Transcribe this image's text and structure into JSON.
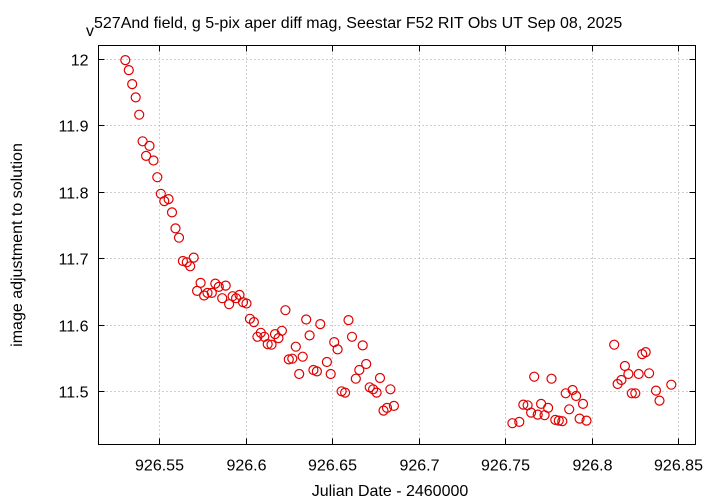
{
  "chart_data": {
    "type": "scatter",
    "title_prefix": "v",
    "title": "527And field, g 5-pix aper diff mag,  Seestar F52 RIT Obs UT Sep 08, 2025",
    "xlabel": "Julian Date - 2460000",
    "ylabel": "image adjustment to solution",
    "xlim": [
      926.515,
      926.86
    ],
    "ylim": [
      11.42,
      12.02
    ],
    "xticks": [
      926.55,
      926.6,
      926.65,
      926.7,
      926.75,
      926.8,
      926.85
    ],
    "xtick_labels": [
      "926.55",
      "926.6",
      "926.65",
      "926.7",
      "926.75",
      "926.8",
      "926.85"
    ],
    "yticks": [
      11.5,
      11.6,
      11.7,
      11.8,
      11.9,
      12.0
    ],
    "ytick_labels": [
      "11.5",
      "11.6",
      "11.7",
      "11.8",
      "11.9",
      "12"
    ],
    "grid": true,
    "marker": "open-circle",
    "color": "#e00000",
    "series": [
      {
        "name": "g 5-pix aper diff mag",
        "points": [
          [
            926.5305,
            11.998
          ],
          [
            926.5325,
            11.983
          ],
          [
            926.5345,
            11.962
          ],
          [
            926.5365,
            11.942
          ],
          [
            926.5385,
            11.916
          ],
          [
            926.5405,
            11.876
          ],
          [
            926.5425,
            11.854
          ],
          [
            926.5445,
            11.869
          ],
          [
            926.5468,
            11.847
          ],
          [
            926.549,
            11.822
          ],
          [
            926.551,
            11.797
          ],
          [
            926.553,
            11.786
          ],
          [
            926.5555,
            11.789
          ],
          [
            926.5575,
            11.769
          ],
          [
            926.5595,
            11.745
          ],
          [
            926.5615,
            11.731
          ],
          [
            926.5638,
            11.696
          ],
          [
            926.566,
            11.694
          ],
          [
            926.568,
            11.688
          ],
          [
            926.57,
            11.701
          ],
          [
            926.572,
            11.651
          ],
          [
            926.574,
            11.663
          ],
          [
            926.576,
            11.644
          ],
          [
            926.578,
            11.648
          ],
          [
            926.5805,
            11.648
          ],
          [
            926.5825,
            11.662
          ],
          [
            926.5845,
            11.657
          ],
          [
            926.5865,
            11.64
          ],
          [
            926.5885,
            11.659
          ],
          [
            926.5905,
            11.631
          ],
          [
            926.5925,
            11.643
          ],
          [
            926.5945,
            11.64
          ],
          [
            926.5965,
            11.645
          ],
          [
            926.5985,
            11.634
          ],
          [
            926.6005,
            11.632
          ],
          [
            926.6025,
            11.609
          ],
          [
            926.6048,
            11.604
          ],
          [
            926.6068,
            11.582
          ],
          [
            926.6088,
            11.588
          ],
          [
            926.6108,
            11.582
          ],
          [
            926.6128,
            11.571
          ],
          [
            926.615,
            11.57
          ],
          [
            926.617,
            11.586
          ],
          [
            926.619,
            11.58
          ],
          [
            926.621,
            11.591
          ],
          [
            926.623,
            11.622
          ],
          [
            926.625,
            11.548
          ],
          [
            926.627,
            11.549
          ],
          [
            926.629,
            11.567
          ],
          [
            926.631,
            11.526
          ],
          [
            926.633,
            11.552
          ],
          [
            926.635,
            11.608
          ],
          [
            926.637,
            11.584
          ],
          [
            926.6392,
            11.532
          ],
          [
            926.6412,
            11.53
          ],
          [
            926.6432,
            11.601
          ],
          [
            926.647,
            11.544
          ],
          [
            926.6492,
            11.526
          ],
          [
            926.6512,
            11.574
          ],
          [
            926.6532,
            11.563
          ],
          [
            926.6555,
            11.5
          ],
          [
            926.6575,
            11.498
          ],
          [
            926.6595,
            11.607
          ],
          [
            926.6615,
            11.582
          ],
          [
            926.6637,
            11.519
          ],
          [
            926.6657,
            11.532
          ],
          [
            926.6677,
            11.569
          ],
          [
            926.6697,
            11.541
          ],
          [
            926.6717,
            11.506
          ],
          [
            926.6737,
            11.503
          ],
          [
            926.6757,
            11.498
          ],
          [
            926.6777,
            11.52
          ],
          [
            926.6797,
            11.471
          ],
          [
            926.6817,
            11.475
          ],
          [
            926.6837,
            11.503
          ],
          [
            926.6857,
            11.478
          ],
          [
            926.7542,
            11.452
          ],
          [
            926.7582,
            11.454
          ],
          [
            926.7605,
            11.48
          ],
          [
            926.763,
            11.479
          ],
          [
            926.765,
            11.468
          ],
          [
            926.7668,
            11.522
          ],
          [
            926.7688,
            11.465
          ],
          [
            926.7708,
            11.481
          ],
          [
            926.7728,
            11.464
          ],
          [
            926.7748,
            11.475
          ],
          [
            926.7768,
            11.519
          ],
          [
            926.779,
            11.457
          ],
          [
            926.781,
            11.456
          ],
          [
            926.783,
            11.455
          ],
          [
            926.785,
            11.497
          ],
          [
            926.787,
            11.473
          ],
          [
            926.789,
            11.502
          ],
          [
            926.791,
            11.493
          ],
          [
            926.793,
            11.459
          ],
          [
            926.795,
            11.481
          ],
          [
            926.797,
            11.456
          ],
          [
            926.813,
            11.57
          ],
          [
            926.815,
            11.511
          ],
          [
            926.8172,
            11.517
          ],
          [
            926.8192,
            11.538
          ],
          [
            926.8212,
            11.526
          ],
          [
            926.8232,
            11.497
          ],
          [
            926.8252,
            11.497
          ],
          [
            926.8272,
            11.526
          ],
          [
            926.8292,
            11.556
          ],
          [
            926.8312,
            11.559
          ],
          [
            926.8332,
            11.527
          ],
          [
            926.8372,
            11.501
          ],
          [
            926.8392,
            11.486
          ],
          [
            926.846,
            11.51
          ]
        ]
      }
    ]
  }
}
